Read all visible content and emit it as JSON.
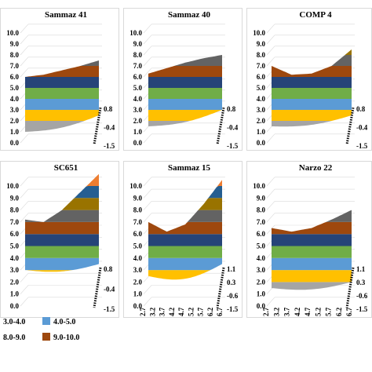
{
  "chart_data": [
    {
      "type": "surface",
      "title": "Sammaz 41",
      "zlim": [
        0,
        10
      ],
      "z_ticks": [
        "0.0",
        "1.0",
        "2.0",
        "3.0",
        "4.0",
        "5.0",
        "6.0",
        "7.0",
        "8.0",
        "9.0",
        "10.0"
      ],
      "y_ticks": [
        "0.8",
        "-0.4",
        "-1.5"
      ],
      "left_edge": [
        1.0,
        2.0,
        3.0,
        4.0,
        5.0,
        6.0
      ],
      "right_edge": [
        2.5,
        3.5,
        4.5,
        6.0,
        7.2
      ],
      "top": [
        6.0,
        6.2,
        6.6,
        7.0,
        7.5
      ]
    },
    {
      "type": "surface",
      "title": "Sammaz 40",
      "zlim": [
        0,
        10
      ],
      "z_ticks": [
        "0.0",
        "1.0",
        "2.0",
        "3.0",
        "4.0",
        "5.0",
        "6.0",
        "7.0",
        "8.0",
        "9.0",
        "10.0"
      ],
      "y_ticks": [
        "0.8",
        "-0.4",
        "-1.5"
      ],
      "left_edge": [
        1.5,
        2.0,
        3.0,
        4.0,
        5.0,
        6.0
      ],
      "right_edge": [
        3.0,
        4.5,
        6.0,
        7.0,
        8.0
      ],
      "top": [
        6.3,
        6.8,
        7.3,
        7.7,
        8.0
      ]
    },
    {
      "type": "surface",
      "title": "COMP 4",
      "zlim": [
        0,
        10
      ],
      "z_ticks": [
        "0.0",
        "1.0",
        "2.0",
        "3.0",
        "4.0",
        "5.0",
        "6.0",
        "7.0",
        "8.0",
        "9.0",
        "10.0"
      ],
      "y_ticks": [
        "0.8",
        "-0.4",
        "-1.5"
      ],
      "left_edge": [
        1.5,
        2.5,
        3.5,
        4.5,
        5.5,
        6.5,
        7.0
      ],
      "right_edge": [
        2.5,
        4.0,
        5.0,
        6.0,
        7.0,
        8.0,
        8.5
      ],
      "top": [
        7.0,
        6.2,
        6.3,
        7.0,
        8.5
      ]
    },
    {
      "type": "surface",
      "title": "SC651",
      "zlim": [
        0,
        10
      ],
      "z_ticks": [
        "0.0",
        "1.0",
        "2.0",
        "3.0",
        "4.0",
        "5.0",
        "6.0",
        "7.0",
        "8.0",
        "9.0",
        "10.0"
      ],
      "y_ticks": [
        "0.8",
        "-0.4",
        "-1.5"
      ],
      "left_edge": [
        3.0,
        4.0,
        5.0,
        6.0,
        7.0
      ],
      "right_edge": [
        3.5,
        5.0,
        6.0,
        7.0,
        8.0,
        9.0,
        10.0
      ],
      "top": [
        7.2,
        7.0,
        8.0,
        9.5,
        11.0
      ]
    },
    {
      "type": "surface",
      "title": "Sammaz 15",
      "zlim": [
        0,
        10
      ],
      "z_ticks": [
        "0.0",
        "1.0",
        "2.0",
        "3.0",
        "4.0",
        "5.0",
        "6.0",
        "7.0",
        "8.0",
        "9.0",
        "10.0"
      ],
      "x_ticks": [
        "2.7",
        "3.2",
        "3.7",
        "4.2",
        "4.7",
        "5.2",
        "5.7",
        "6.2",
        "6.7"
      ],
      "y_ticks": [
        "1.1",
        "0.3",
        "-0.6",
        "-1.5"
      ],
      "left_edge": [
        2.5,
        3.0,
        4.0,
        5.0,
        6.0,
        7.0
      ],
      "right_edge": [
        3.5,
        5.0,
        6.0,
        7.0,
        8.0,
        9.0,
        10.0
      ],
      "top": [
        7.0,
        6.2,
        6.8,
        8.5,
        10.5
      ]
    },
    {
      "type": "surface",
      "title": "Narzo 22",
      "zlim": [
        0,
        10
      ],
      "z_ticks": [
        "0.0",
        "1.0",
        "2.0",
        "3.0",
        "4.0",
        "5.0",
        "6.0",
        "7.0",
        "8.0",
        "9.0",
        "10.0"
      ],
      "x_ticks": [
        "2.7",
        "3.2",
        "3.7",
        "4.2",
        "4.7",
        "5.2",
        "5.7",
        "6.2",
        "6.7"
      ],
      "y_ticks": [
        "1.1",
        "0.3",
        "-0.6",
        "-1.5"
      ],
      "left_edge": [
        1.5,
        2.5,
        3.5,
        4.5,
        5.5,
        6.5
      ],
      "right_edge": [
        2.0,
        3.0,
        4.0,
        5.0,
        6.0,
        7.0,
        8.0
      ],
      "top": [
        6.5,
        6.2,
        6.5,
        7.2,
        8.0
      ]
    }
  ],
  "legend": [
    {
      "label": "3.0-4.0",
      "color": "#a5a5a5"
    },
    {
      "label": "4.0-5.0",
      "color": "#5b9bd5"
    },
    {
      "label": "8.0-9.0",
      "color": "#264478"
    },
    {
      "label": "9.0-10.0",
      "color": "#9e480e"
    }
  ],
  "band_colors": [
    "#ed7d31",
    "#a5a5a5",
    "#ffc000",
    "#5b9bd5",
    "#70ad47",
    "#264478",
    "#9e480e",
    "#636363",
    "#997300",
    "#255e91"
  ]
}
